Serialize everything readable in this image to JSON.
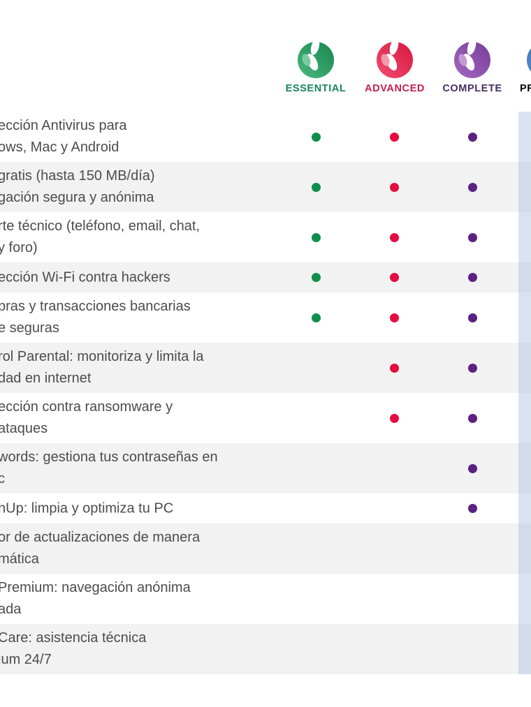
{
  "page": {
    "background": "#ffffff"
  },
  "header": {
    "columns": [
      {
        "id": "essential",
        "label": "ESSENTIAL",
        "label_color": "#17855c",
        "logo": {
          "light": "#4db883",
          "dark": "#15854d",
          "blob": "#7acba1"
        }
      },
      {
        "id": "advanced",
        "label": "ADVANCED",
        "label_color": "#c4204f",
        "logo": {
          "light": "#ef4f70",
          "dark": "#d8173f",
          "blob": "#f29aac"
        }
      },
      {
        "id": "complete",
        "label": "COMPLETE",
        "label_color": "#443064",
        "logo": {
          "light": "#a168bd",
          "dark": "#7a3d9c",
          "blob": "#c29bd5"
        }
      },
      {
        "id": "premium",
        "label": "PR",
        "label_color": "#2e5fa3",
        "logo": {
          "light": "#5d8fd0",
          "dark": "#2d5f9f",
          "blob": "#9ab8e0"
        }
      }
    ]
  },
  "table": {
    "row_stripe_color": "#f2f2f2",
    "premium_stripe_color": "rgba(170,192,221,0.45)",
    "text_color": "#4c4c4c",
    "dot_colors": {
      "essential": "#0f8f4c",
      "advanced": "#e50c3e",
      "complete": "#5b2181"
    },
    "features": [
      {
        "lines": [
          "ección Antivirus para",
          "ows, Mac y Android"
        ],
        "dots": [
          "essential",
          "advanced",
          "complete"
        ]
      },
      {
        "lines": [
          "gratis (hasta 150 MB/día)",
          "gación segura y anónima"
        ],
        "dots": [
          "essential",
          "advanced",
          "complete"
        ]
      },
      {
        "lines": [
          "rte técnico (teléfono, email, chat,",
          "y foro)"
        ],
        "dots": [
          "essential",
          "advanced",
          "complete"
        ]
      },
      {
        "lines": [
          "ección Wi-Fi contra hackers"
        ],
        "dots": [
          "essential",
          "advanced",
          "complete"
        ]
      },
      {
        "lines": [
          "pras y transacciones bancarias",
          "e seguras"
        ],
        "dots": [
          "essential",
          "advanced",
          "complete"
        ]
      },
      {
        "lines": [
          "rol Parental: monitoriza y limita la",
          "dad en internet"
        ],
        "dots": [
          "advanced",
          "complete"
        ]
      },
      {
        "lines": [
          "ección contra ransomware y",
          "ataques"
        ],
        "dots": [
          "advanced",
          "complete"
        ]
      },
      {
        "lines": [
          "words: gestiona tus contraseñas en",
          "c"
        ],
        "dots": [
          "complete"
        ]
      },
      {
        "lines": [
          "nUp: limpia y optimiza tu PC"
        ],
        "dots": [
          "complete"
        ]
      },
      {
        "lines": [
          "or de actualizaciones de manera",
          "mática"
        ],
        "dots": []
      },
      {
        "lines": [
          "Premium: navegación anónima",
          "ada"
        ],
        "dots": []
      },
      {
        "lines": [
          "Care: asistencia técnica",
          "ium 24/7"
        ],
        "dots": []
      }
    ]
  }
}
